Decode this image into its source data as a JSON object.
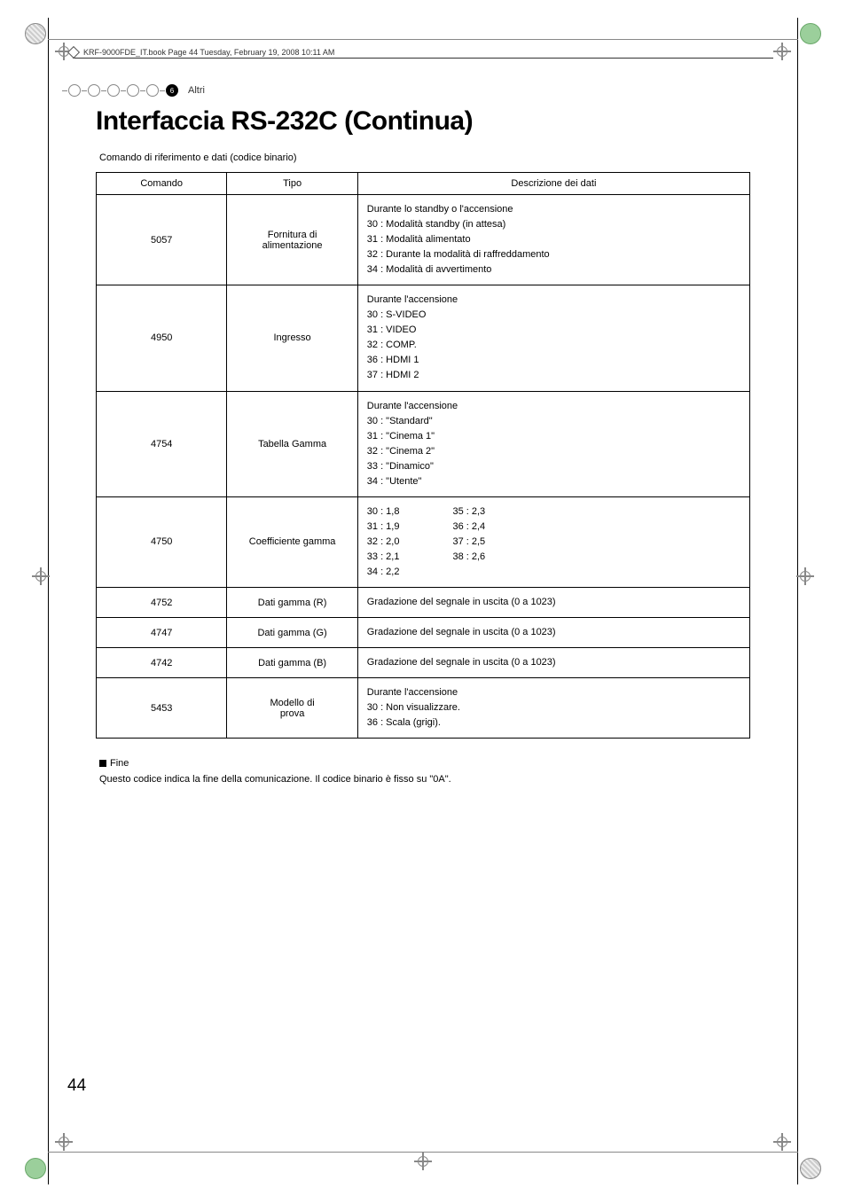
{
  "header": {
    "bookmark_text": "KRF-9000FDE_IT.book  Page 44  Tuesday, February 19, 2008  10:11 AM",
    "chapter_number": "6",
    "chapter_label": "Altri"
  },
  "title": "Interfaccia RS-232C (Continua)",
  "subcaption": "Comando di riferimento e dati (codice binario)",
  "table": {
    "headers": {
      "c1": "Comando",
      "c2": "Tipo",
      "c3": "Descrizione dei dati"
    },
    "rows": [
      {
        "cmd": "5057",
        "tipo": "Fornitura di alimentazione",
        "desc": [
          "Durante lo standby o l'accensione",
          "30 : Modalità standby (in attesa)",
          "31 : Modalità alimentato",
          "32 : Durante la modalità di raffreddamento",
          "34 : Modalità di avvertimento"
        ]
      },
      {
        "cmd": "4950",
        "tipo": "Ingresso",
        "desc": [
          "Durante l'accensione",
          "30 : S-VIDEO",
          "31 : VIDEO",
          "32 : COMP.",
          "36 : HDMI 1",
          "37 : HDMI 2"
        ]
      },
      {
        "cmd": "4754",
        "tipo": "Tabella Gamma",
        "desc": [
          "Durante l'accensione",
          "30 : \"Standard\"",
          "31 : \"Cinema 1\"",
          "32 : \"Cinema 2\"",
          "33 : \"Dinamico\"",
          "34 : \"Utente\""
        ]
      },
      {
        "cmd": "4750",
        "tipo": "Coefficiente gamma",
        "pairs": {
          "left": [
            "30 : 1,8",
            "31 : 1,9",
            "32 : 2,0",
            "33 : 2,1",
            "34 : 2,2"
          ],
          "right": [
            "35 : 2,3",
            "36 : 2,4",
            "37 : 2,5",
            "38 : 2,6"
          ]
        }
      },
      {
        "cmd": "4752",
        "tipo": "Dati gamma (R)",
        "desc": [
          "Gradazione del segnale in uscita (0 a 1023)"
        ]
      },
      {
        "cmd": "4747",
        "tipo": "Dati gamma (G)",
        "desc": [
          "Gradazione del segnale in uscita (0 a 1023)"
        ]
      },
      {
        "cmd": "4742",
        "tipo": "Dati gamma (B)",
        "desc": [
          "Gradazione del segnale in uscita (0 a 1023)"
        ]
      },
      {
        "cmd": "5453",
        "tipo": "Modello di prova",
        "desc": [
          "Durante l'accensione",
          "30 : Non visualizzare.",
          "36 : Scala (grigi)."
        ]
      }
    ]
  },
  "fine": {
    "heading": "Fine",
    "body": "Questo codice indica la fine della comunicazione. Il codice binario è fisso su \"0A\"."
  },
  "page_number": "44",
  "colors": {
    "text": "#000000",
    "rule": "#888888",
    "background": "#ffffff",
    "reg_green": "#9bcf9b"
  }
}
